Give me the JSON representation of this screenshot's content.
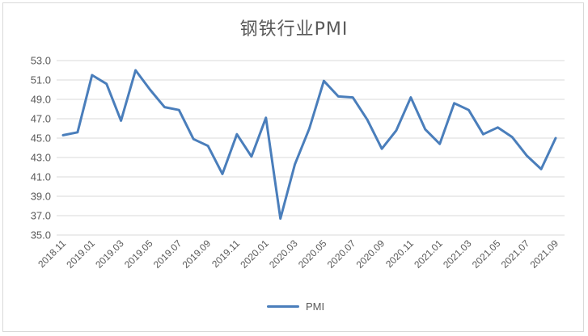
{
  "chart_data": {
    "type": "line",
    "title": "钢铁行业PMI",
    "xlabel": "",
    "ylabel": "",
    "ylim": [
      35.0,
      53.0
    ],
    "yticks": [
      "53.0",
      "51.0",
      "49.0",
      "47.0",
      "45.0",
      "43.0",
      "41.0",
      "39.0",
      "37.0",
      "35.0"
    ],
    "grid": true,
    "legend_position": "bottom",
    "x": [
      "2018.11",
      "2018.12",
      "2019.01",
      "2019.02",
      "2019.03",
      "2019.04",
      "2019.05",
      "2019.06",
      "2019.07",
      "2019.08",
      "2019.09",
      "2019.10",
      "2019.11",
      "2019.12",
      "2020.01",
      "2020.02",
      "2020.03",
      "2020.04",
      "2020.05",
      "2020.06",
      "2020.07",
      "2020.08",
      "2020.09",
      "2020.10",
      "2020.11",
      "2020.12",
      "2021.01",
      "2021.02",
      "2021.03",
      "2021.04",
      "2021.05",
      "2021.06",
      "2021.07",
      "2021.08",
      "2021.09"
    ],
    "xtick_labels": [
      "2018.11",
      "2019.01",
      "2019.03",
      "2019.05",
      "2019.07",
      "2019.09",
      "2019.11",
      "2020.01",
      "2020.03",
      "2020.05",
      "2020.07",
      "2020.09",
      "2020.11",
      "2021.01",
      "2021.03",
      "2021.05",
      "2021.07",
      "2021.09"
    ],
    "series": [
      {
        "name": "PMI",
        "color": "#4a7ebb",
        "values": [
          45.3,
          45.6,
          51.5,
          50.6,
          46.8,
          52.0,
          50.0,
          48.2,
          47.9,
          44.9,
          44.2,
          41.3,
          45.4,
          43.1,
          47.1,
          36.7,
          42.3,
          46.0,
          50.9,
          49.3,
          49.2,
          46.9,
          43.9,
          45.8,
          49.2,
          45.9,
          44.4,
          48.6,
          47.9,
          45.4,
          46.1,
          45.1,
          43.2,
          41.8,
          45.0
        ]
      }
    ]
  },
  "legend": {
    "label": "PMI"
  }
}
